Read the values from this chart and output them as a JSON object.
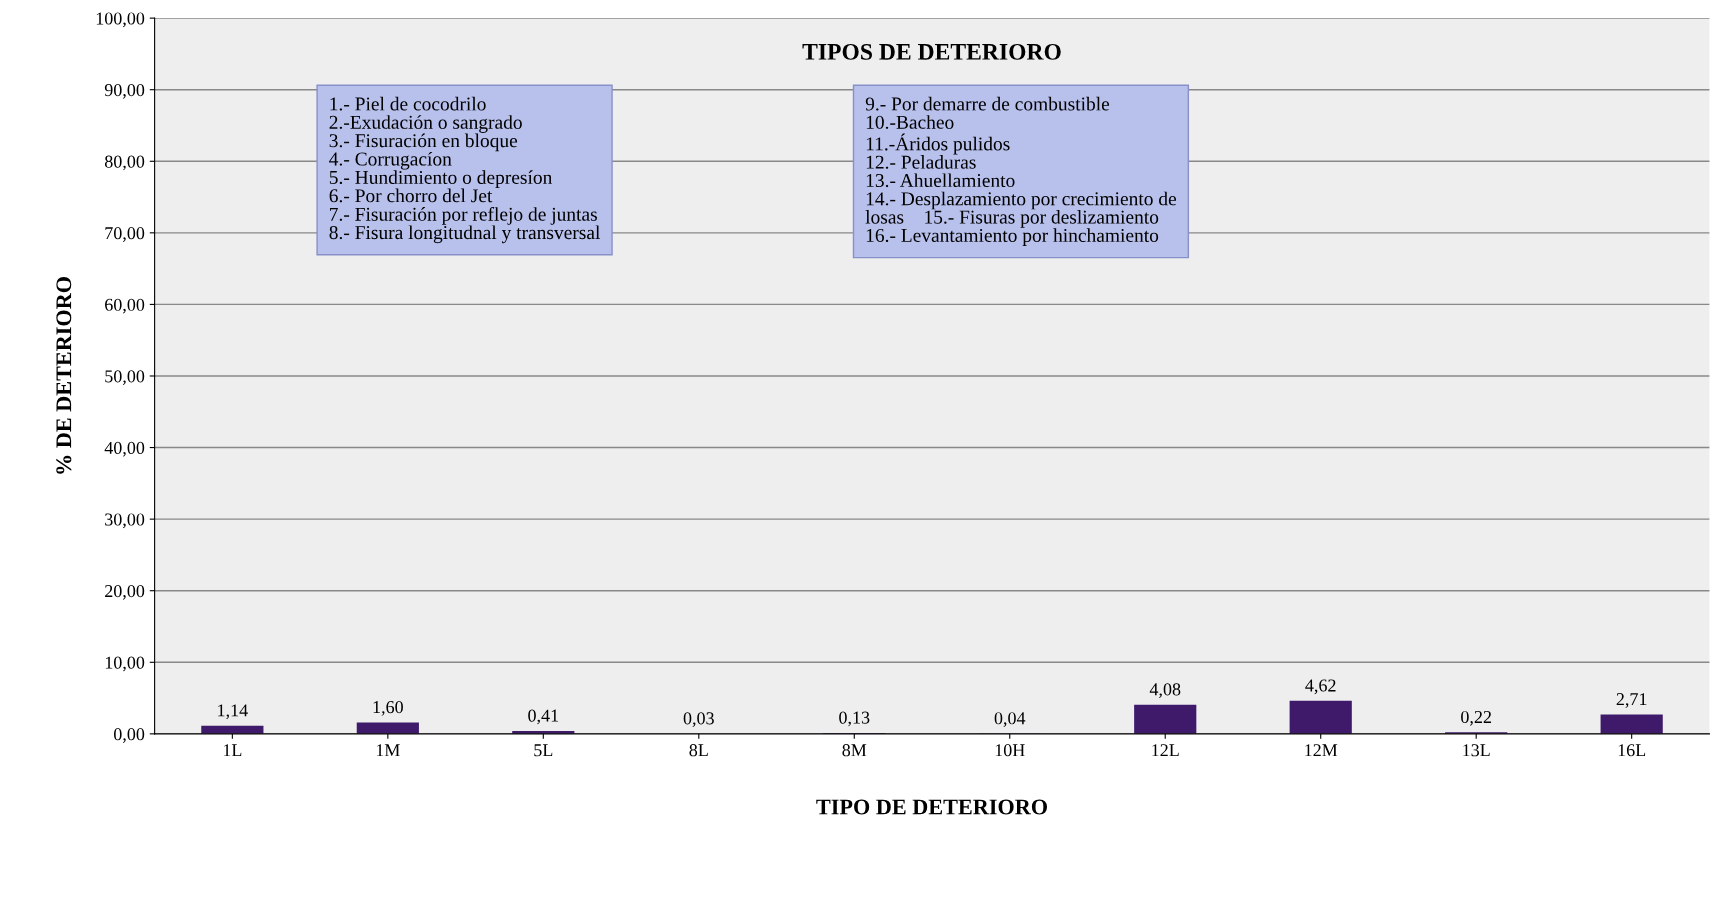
{
  "chart_data": {
    "type": "bar",
    "title": "TIPOS DE DETERIORO",
    "xlabel": "TIPO DE DETERIORO",
    "ylabel": "% DE DETERIORO",
    "categories": [
      "1L",
      "1M",
      "5L",
      "8L",
      "8M",
      "10H",
      "12L",
      "12M",
      "13L",
      "16L"
    ],
    "values": [
      1.14,
      1.6,
      0.41,
      0.03,
      0.13,
      0.04,
      4.08,
      4.62,
      0.22,
      2.71
    ],
    "value_labels": [
      "1,14",
      "1,60",
      "0,41",
      "0,03",
      "0,13",
      "0,04",
      "4,08",
      "4,62",
      "0,22",
      "2,71"
    ],
    "color": "#3f1a6b",
    "ylim": [
      0,
      100
    ],
    "yticks": [
      {
        "value": 0,
        "label": "0,00"
      },
      {
        "value": 10,
        "label": "10,00"
      },
      {
        "value": 20,
        "label": "20,00"
      },
      {
        "value": 30,
        "label": "30,00"
      },
      {
        "value": 40,
        "label": "40,00"
      },
      {
        "value": 50,
        "label": "50,00"
      },
      {
        "value": 60,
        "label": "60,00"
      },
      {
        "value": 70,
        "label": "70,00"
      },
      {
        "value": 80,
        "label": "80,00"
      },
      {
        "value": 90,
        "label": "90,00"
      },
      {
        "value": 100,
        "label": "100,00"
      }
    ],
    "grid": "y",
    "annotations": [
      "1.- Piel de cocodrilo\n2.-Exudación o sangrado\n3.- Fisuración en bloque\n4.- Corrugacíon\n5.- Hundimiento o depresíon\n6.- Por chorro del Jet\n7.- Fisuración por reflejo de juntas\n8.- Fisura longitudnal y transversal",
      "9.- Por demarre de combustible\n10.-Bacheo\n11.-Áridos pulidos\n12.- Peladuras\n13.- Ahuellamiento\n14.- Desplazamiento por crecimiento de\nlosas    15.- Fisuras por deslizamiento\n16.- Levantamiento por hinchamiento"
    ]
  }
}
